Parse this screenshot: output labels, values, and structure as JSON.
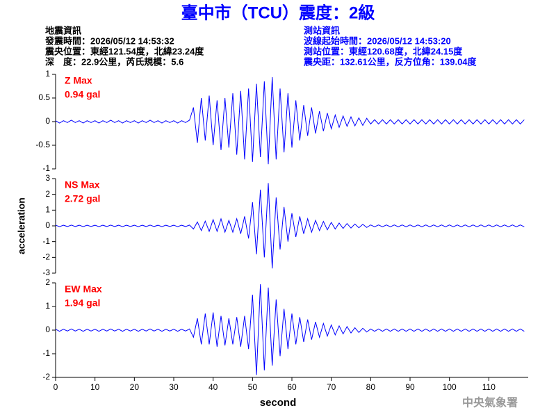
{
  "header": {
    "title": "臺中市（TCU）震度：2級",
    "left": [
      "地震資訊",
      "發震時間：2026/05/12 14:53:32",
      "震央位置：東經121.54度，北緯23.24度",
      "深　度：22.9公里，芮氏規模：5.6"
    ],
    "right": [
      "測站資訊",
      "波線起始時間：2026/05/12 14:53:20",
      "測站位置：東經120.68度，北緯24.15度",
      "震央距：132.61公里，反方位角：139.04度"
    ],
    "footer": "中央氣象署"
  },
  "chart_data": [
    {
      "type": "line",
      "annotations": [
        "Z Max",
        "0.94 gal"
      ],
      "color": "#0000ff",
      "xlim": [
        0,
        120
      ],
      "ylim": [
        -1,
        1
      ],
      "yticks": [
        -1,
        -0.5,
        0,
        0.5,
        1
      ],
      "x": [
        0,
        1,
        2,
        3,
        4,
        5,
        6,
        7,
        8,
        9,
        10,
        11,
        12,
        13,
        14,
        15,
        16,
        17,
        18,
        19,
        20,
        21,
        22,
        23,
        24,
        25,
        26,
        27,
        28,
        29,
        30,
        31,
        32,
        33,
        34,
        35,
        36,
        37,
        38,
        39,
        40,
        41,
        42,
        43,
        44,
        45,
        46,
        47,
        48,
        49,
        50,
        51,
        52,
        53,
        54,
        55,
        56,
        57,
        58,
        59,
        60,
        61,
        62,
        63,
        64,
        65,
        66,
        67,
        68,
        69,
        70,
        71,
        72,
        73,
        74,
        75,
        76,
        77,
        78,
        79,
        80,
        81,
        82,
        83,
        84,
        85,
        86,
        87,
        88,
        89,
        90,
        91,
        92,
        93,
        94,
        95,
        96,
        97,
        98,
        99,
        100,
        101,
        102,
        103,
        104,
        105,
        106,
        107,
        108,
        109,
        110,
        111,
        112,
        113,
        114,
        115,
        116,
        117,
        118,
        119
      ],
      "values": [
        0.02,
        -0.03,
        0.02,
        -0.02,
        0.03,
        -0.02,
        0.02,
        -0.03,
        0.02,
        -0.02,
        0.02,
        -0.03,
        0.02,
        -0.02,
        0.03,
        -0.02,
        0.02,
        -0.03,
        0.02,
        -0.02,
        0.02,
        -0.03,
        0.02,
        -0.02,
        0.03,
        -0.02,
        0.02,
        -0.03,
        0.02,
        -0.02,
        0.02,
        -0.03,
        0.02,
        -0.02,
        0.03,
        0.3,
        -0.45,
        0.5,
        -0.4,
        0.55,
        -0.5,
        0.45,
        -0.6,
        0.5,
        -0.55,
        0.6,
        -0.7,
        0.65,
        -0.8,
        0.7,
        -0.85,
        0.8,
        -0.75,
        0.85,
        -0.9,
        0.94,
        -0.8,
        0.7,
        -0.65,
        0.6,
        -0.55,
        0.45,
        -0.4,
        0.35,
        -0.3,
        0.3,
        -0.25,
        0.22,
        -0.2,
        0.18,
        -0.15,
        0.14,
        -0.12,
        0.12,
        -0.1,
        0.1,
        -0.09,
        0.08,
        -0.08,
        0.07,
        -0.05,
        0.04,
        -0.05,
        0.04,
        -0.05,
        0.04,
        -0.05,
        0.04,
        -0.05,
        0.04,
        -0.05,
        0.04,
        -0.05,
        0.04,
        -0.05,
        0.04,
        -0.05,
        0.04,
        -0.05,
        0.04,
        -0.05,
        0.04,
        -0.05,
        0.04,
        -0.05,
        0.04,
        -0.05,
        0.04,
        -0.05,
        0.04,
        -0.05,
        0.04,
        -0.05,
        0.04,
        -0.05,
        0.04,
        -0.05,
        0.04,
        -0.05,
        0.04
      ]
    },
    {
      "type": "line",
      "annotations": [
        "NS Max",
        "2.72 gal"
      ],
      "color": "#0000ff",
      "xlim": [
        0,
        120
      ],
      "ylim": [
        -3,
        3
      ],
      "yticks": [
        -3,
        -2,
        -1,
        0,
        1,
        2,
        3
      ],
      "ylabel": "acceleration",
      "x": [
        0,
        1,
        2,
        3,
        4,
        5,
        6,
        7,
        8,
        9,
        10,
        11,
        12,
        13,
        14,
        15,
        16,
        17,
        18,
        19,
        20,
        21,
        22,
        23,
        24,
        25,
        26,
        27,
        28,
        29,
        30,
        31,
        32,
        33,
        34,
        35,
        36,
        37,
        38,
        39,
        40,
        41,
        42,
        43,
        44,
        45,
        46,
        47,
        48,
        49,
        50,
        51,
        52,
        53,
        54,
        55,
        56,
        57,
        58,
        59,
        60,
        61,
        62,
        63,
        64,
        65,
        66,
        67,
        68,
        69,
        70,
        71,
        72,
        73,
        74,
        75,
        76,
        77,
        78,
        79,
        80,
        81,
        82,
        83,
        84,
        85,
        86,
        87,
        88,
        89,
        90,
        91,
        92,
        93,
        94,
        95,
        96,
        97,
        98,
        99,
        100,
        101,
        102,
        103,
        104,
        105,
        106,
        107,
        108,
        109,
        110,
        111,
        112,
        113,
        114,
        115,
        116,
        117,
        118,
        119
      ],
      "values": [
        0.04,
        -0.05,
        0.04,
        -0.04,
        0.05,
        -0.04,
        0.04,
        -0.05,
        0.04,
        -0.04,
        0.04,
        -0.05,
        0.04,
        -0.04,
        0.05,
        -0.04,
        0.04,
        -0.05,
        0.04,
        -0.04,
        0.04,
        -0.05,
        0.04,
        -0.04,
        0.05,
        -0.04,
        0.04,
        -0.05,
        0.04,
        -0.04,
        0.04,
        -0.05,
        0.04,
        -0.04,
        0.05,
        -0.2,
        0.25,
        -0.3,
        0.3,
        -0.35,
        0.4,
        -0.35,
        0.45,
        -0.4,
        0.35,
        -0.4,
        0.45,
        -0.5,
        0.6,
        -0.8,
        1.5,
        -1.8,
        2.3,
        -2.0,
        2.72,
        -2.7,
        1.8,
        -1.5,
        1.2,
        -1.0,
        0.8,
        -0.7,
        0.6,
        -0.5,
        0.45,
        -0.4,
        0.35,
        -0.3,
        0.28,
        -0.25,
        0.22,
        -0.2,
        0.18,
        -0.16,
        0.15,
        -0.14,
        0.12,
        -0.12,
        0.1,
        -0.1,
        0.06,
        -0.06,
        0.06,
        -0.06,
        0.06,
        -0.06,
        0.06,
        -0.06,
        0.06,
        -0.06,
        0.06,
        -0.06,
        0.06,
        -0.06,
        0.06,
        -0.06,
        0.06,
        -0.06,
        0.06,
        -0.06,
        0.06,
        -0.06,
        0.06,
        -0.06,
        0.06,
        -0.06,
        0.06,
        -0.06,
        0.06,
        -0.06,
        0.06,
        -0.06,
        0.06,
        -0.06,
        0.06,
        -0.06,
        0.06,
        -0.06,
        0.06,
        -0.06
      ]
    },
    {
      "type": "line",
      "annotations": [
        "EW Max",
        "1.94 gal"
      ],
      "color": "#0000ff",
      "xlim": [
        0,
        120
      ],
      "ylim": [
        -2,
        2
      ],
      "yticks": [
        -2,
        -1,
        0,
        1,
        2
      ],
      "xticks": [
        0,
        10,
        20,
        30,
        40,
        50,
        60,
        70,
        80,
        90,
        100,
        110
      ],
      "xlabel": "second",
      "x": [
        0,
        1,
        2,
        3,
        4,
        5,
        6,
        7,
        8,
        9,
        10,
        11,
        12,
        13,
        14,
        15,
        16,
        17,
        18,
        19,
        20,
        21,
        22,
        23,
        24,
        25,
        26,
        27,
        28,
        29,
        30,
        31,
        32,
        33,
        34,
        35,
        36,
        37,
        38,
        39,
        40,
        41,
        42,
        43,
        44,
        45,
        46,
        47,
        48,
        49,
        50,
        51,
        52,
        53,
        54,
        55,
        56,
        57,
        58,
        59,
        60,
        61,
        62,
        63,
        64,
        65,
        66,
        67,
        68,
        69,
        70,
        71,
        72,
        73,
        74,
        75,
        76,
        77,
        78,
        79,
        80,
        81,
        82,
        83,
        84,
        85,
        86,
        87,
        88,
        89,
        90,
        91,
        92,
        93,
        94,
        95,
        96,
        97,
        98,
        99,
        100,
        101,
        102,
        103,
        104,
        105,
        106,
        107,
        108,
        109,
        110,
        111,
        112,
        113,
        114,
        115,
        116,
        117,
        118,
        119
      ],
      "values": [
        0.04,
        -0.05,
        0.04,
        -0.04,
        0.05,
        -0.04,
        0.04,
        -0.05,
        0.04,
        -0.04,
        0.04,
        -0.05,
        0.04,
        -0.04,
        0.05,
        -0.04,
        0.04,
        -0.05,
        0.04,
        -0.04,
        0.04,
        -0.05,
        0.04,
        -0.04,
        0.05,
        -0.04,
        0.04,
        -0.05,
        0.04,
        -0.04,
        0.04,
        -0.05,
        0.04,
        -0.04,
        0.05,
        -0.3,
        0.5,
        -0.6,
        0.7,
        -0.6,
        0.75,
        -0.7,
        0.6,
        -0.65,
        0.5,
        -0.6,
        0.55,
        -0.7,
        0.6,
        -0.8,
        1.5,
        -1.9,
        1.94,
        -1.7,
        1.8,
        -1.5,
        1.3,
        -1.1,
        0.9,
        -0.8,
        0.7,
        -0.6,
        0.55,
        -0.5,
        0.45,
        -0.4,
        0.35,
        -0.3,
        0.28,
        -0.25,
        0.22,
        -0.2,
        0.18,
        -0.16,
        0.15,
        -0.12,
        0.1,
        -0.1,
        0.08,
        -0.08,
        0.05,
        -0.05,
        0.05,
        -0.05,
        0.05,
        -0.05,
        0.05,
        -0.05,
        0.05,
        -0.05,
        0.05,
        -0.05,
        0.05,
        -0.05,
        0.05,
        -0.05,
        0.05,
        -0.05,
        0.05,
        -0.05,
        0.05,
        -0.05,
        0.05,
        -0.05,
        0.05,
        -0.05,
        0.05,
        -0.05,
        0.05,
        -0.05,
        0.05,
        -0.05,
        0.05,
        -0.05,
        0.05,
        -0.05,
        0.05,
        -0.05,
        0.05,
        -0.05
      ]
    }
  ]
}
